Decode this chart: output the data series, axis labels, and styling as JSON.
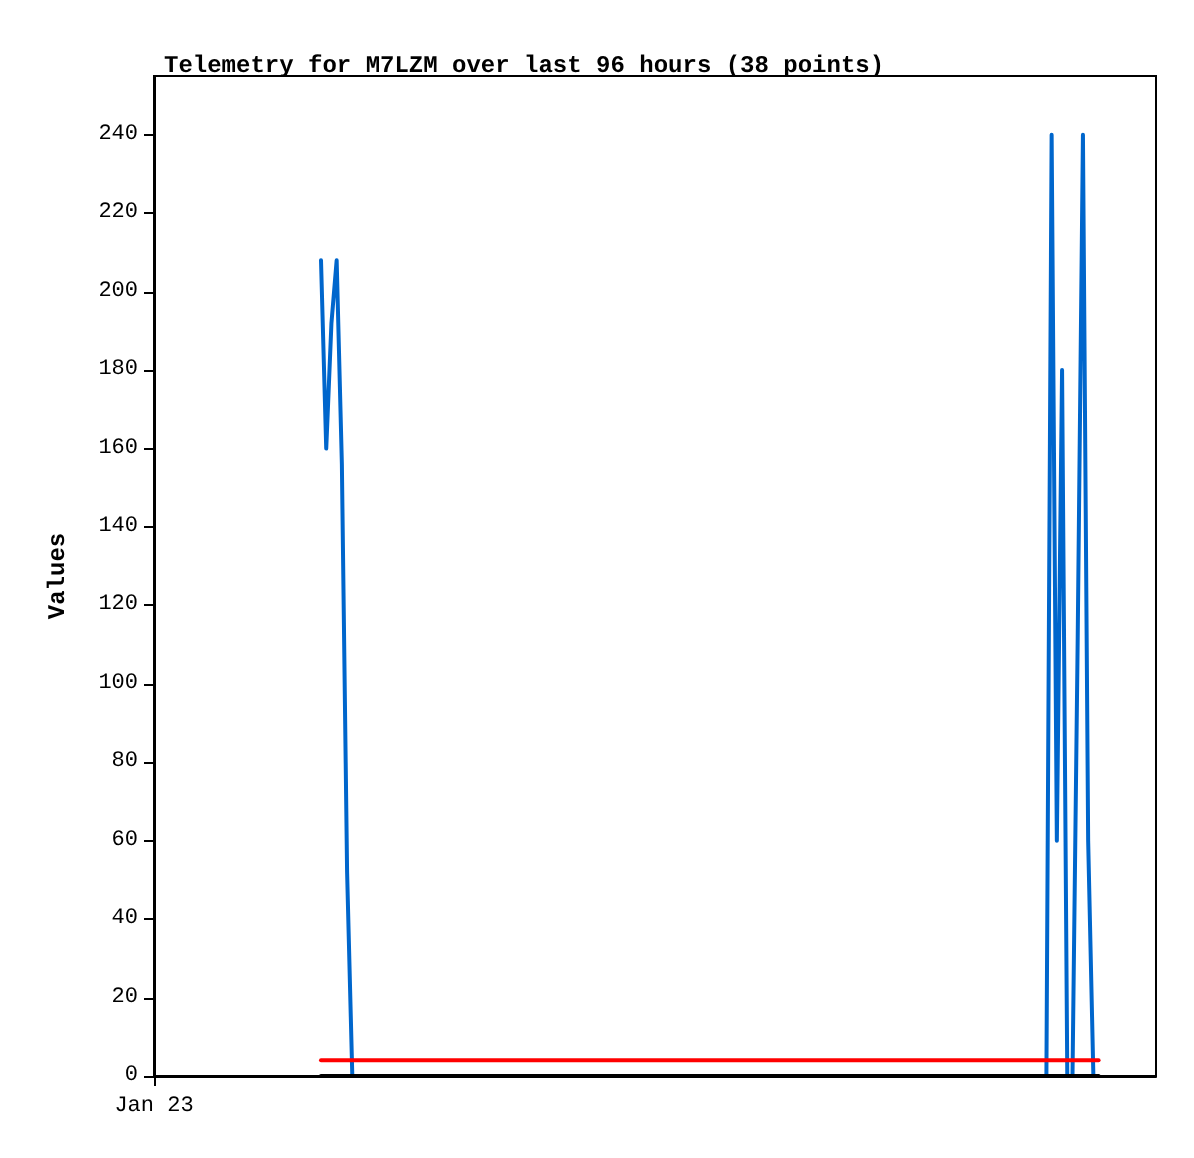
{
  "chart_data": {
    "type": "line",
    "title": "Telemetry for M7LZM over last 96 hours (38 points)",
    "ylabel": "Values",
    "categories": [
      "Jan 23",
      null,
      null,
      null,
      null,
      null,
      null,
      null,
      null,
      null,
      null,
      null,
      null,
      null,
      null,
      null,
      null,
      null,
      null,
      null,
      null,
      null,
      null,
      null,
      null,
      null,
      null,
      null,
      null,
      null,
      null,
      null,
      null,
      null,
      null,
      null,
      null,
      null,
      null,
      null,
      null,
      null,
      null,
      null,
      null,
      null,
      null,
      null,
      null,
      null,
      null,
      null,
      null,
      null,
      null,
      null,
      null,
      null,
      null,
      null,
      null,
      null,
      null,
      null,
      null,
      null,
      null,
      null,
      null,
      null,
      null,
      null,
      null,
      null,
      null,
      null,
      null,
      null,
      null,
      null,
      null,
      null,
      null,
      null,
      null,
      null,
      null,
      null,
      null,
      null,
      null,
      null,
      null,
      null,
      null,
      null,
      null,
      null,
      null,
      null,
      null,
      null,
      null,
      null,
      null,
      null,
      null,
      null,
      null,
      null,
      null,
      null,
      null,
      null,
      null,
      null,
      null,
      null,
      null,
      null,
      null,
      null,
      null,
      null,
      null,
      null,
      null,
      null,
      null,
      null,
      null,
      null,
      null,
      null,
      null,
      null,
      null,
      null,
      null,
      null,
      null,
      null,
      null,
      null,
      null,
      null,
      null,
      null,
      null,
      null,
      null,
      null,
      null,
      null,
      null,
      null,
      null,
      null,
      null,
      null,
      null,
      null,
      null,
      null,
      null,
      null,
      null,
      null,
      null,
      null,
      null,
      null,
      null,
      null,
      null,
      null,
      null,
      null,
      null,
      null,
      null,
      null,
      null,
      null,
      null,
      null,
      null,
      null,
      null,
      null,
      null,
      null,
      null
    ],
    "ylim": [
      0,
      255
    ],
    "yticks": [
      0,
      20,
      40,
      60,
      80,
      100,
      120,
      140,
      160,
      180,
      200,
      220,
      240
    ],
    "grid": false,
    "marker": "none",
    "line_style": "solid",
    "series": [
      {
        "color": "#0066cc",
        "values": [
          null,
          null,
          null,
          null,
          null,
          null,
          null,
          null,
          null,
          null,
          null,
          null,
          null,
          null,
          null,
          null,
          null,
          null,
          null,
          null,
          null,
          null,
          null,
          null,
          null,
          null,
          null,
          null,
          null,
          null,
          null,
          null,
          208,
          160,
          192,
          208,
          156,
          52,
          0,
          null,
          null,
          null,
          null,
          null,
          null,
          null,
          null,
          null,
          null,
          null,
          null,
          null,
          null,
          null,
          null,
          null,
          null,
          null,
          null,
          null,
          null,
          null,
          null,
          null,
          null,
          null,
          null,
          null,
          null,
          null,
          null,
          null,
          null,
          null,
          null,
          null,
          null,
          null,
          null,
          null,
          null,
          null,
          null,
          null,
          null,
          null,
          null,
          null,
          null,
          null,
          null,
          null,
          null,
          null,
          null,
          null,
          null,
          null,
          null,
          null,
          null,
          null,
          null,
          null,
          null,
          null,
          null,
          null,
          null,
          null,
          null,
          null,
          null,
          null,
          null,
          null,
          null,
          null,
          null,
          null,
          null,
          null,
          null,
          null,
          null,
          null,
          null,
          null,
          null,
          null,
          null,
          null,
          null,
          null,
          null,
          null,
          null,
          null,
          null,
          null,
          null,
          null,
          null,
          null,
          null,
          null,
          null,
          null,
          null,
          null,
          null,
          null,
          null,
          null,
          null,
          null,
          null,
          null,
          null,
          null,
          null,
          null,
          null,
          null,
          null,
          null,
          null,
          null,
          null,
          null,
          null,
          0,
          240,
          60,
          180,
          0,
          0,
          112,
          240,
          60,
          0,
          null,
          null,
          null,
          null,
          null,
          null,
          null,
          null,
          null,
          null,
          null,
          null
        ]
      },
      {
        "color": "#ff0000",
        "values": [
          null,
          null,
          null,
          null,
          null,
          null,
          null,
          null,
          null,
          null,
          null,
          null,
          null,
          null,
          null,
          null,
          null,
          null,
          null,
          null,
          null,
          null,
          null,
          null,
          null,
          null,
          null,
          null,
          null,
          null,
          null,
          null,
          4,
          4,
          4,
          4,
          4,
          4,
          4,
          4,
          4,
          4,
          4,
          4,
          4,
          4,
          4,
          4,
          4,
          4,
          4,
          4,
          4,
          4,
          4,
          4,
          4,
          4,
          4,
          4,
          4,
          4,
          4,
          4,
          4,
          4,
          4,
          4,
          4,
          4,
          4,
          4,
          4,
          4,
          4,
          4,
          4,
          4,
          4,
          4,
          4,
          4,
          4,
          4,
          4,
          4,
          4,
          4,
          4,
          4,
          4,
          4,
          4,
          4,
          4,
          4,
          4,
          4,
          4,
          4,
          4,
          4,
          4,
          4,
          4,
          4,
          4,
          4,
          4,
          4,
          4,
          4,
          4,
          4,
          4,
          4,
          4,
          4,
          4,
          4,
          4,
          4,
          4,
          4,
          4,
          4,
          4,
          4,
          4,
          4,
          4,
          4,
          4,
          4,
          4,
          4,
          4,
          4,
          4,
          4,
          4,
          4,
          4,
          4,
          4,
          4,
          4,
          4,
          4,
          4,
          4,
          4,
          4,
          4,
          4,
          4,
          4,
          4,
          4,
          4,
          4,
          4,
          4,
          4,
          4,
          4,
          4,
          4,
          4,
          4,
          4,
          4,
          4,
          4,
          4,
          4,
          4,
          4,
          4,
          4,
          4,
          4,
          null,
          null,
          null,
          null,
          null,
          null,
          null,
          null,
          null,
          null,
          null
        ]
      },
      {
        "color": "#000000",
        "values": [
          null,
          null,
          null,
          null,
          null,
          null,
          null,
          null,
          null,
          null,
          null,
          null,
          null,
          null,
          null,
          null,
          null,
          null,
          null,
          null,
          null,
          null,
          null,
          null,
          null,
          null,
          null,
          null,
          null,
          null,
          null,
          null,
          0,
          0,
          0,
          0,
          0,
          0,
          0,
          0,
          0,
          0,
          0,
          0,
          0,
          0,
          0,
          0,
          0,
          0,
          0,
          0,
          0,
          0,
          0,
          0,
          0,
          0,
          0,
          0,
          0,
          0,
          0,
          0,
          0,
          0,
          0,
          0,
          0,
          0,
          0,
          0,
          0,
          0,
          0,
          0,
          0,
          0,
          0,
          0,
          0,
          0,
          0,
          0,
          0,
          0,
          0,
          0,
          0,
          0,
          0,
          0,
          0,
          0,
          0,
          0,
          0,
          0,
          0,
          0,
          0,
          0,
          0,
          0,
          0,
          0,
          0,
          0,
          0,
          0,
          0,
          0,
          0,
          0,
          0,
          0,
          0,
          0,
          0,
          0,
          0,
          0,
          0,
          0,
          0,
          0,
          0,
          0,
          0,
          0,
          0,
          0,
          0,
          0,
          0,
          0,
          0,
          0,
          0,
          0,
          0,
          0,
          0,
          0,
          0,
          0,
          0,
          0,
          0,
          0,
          0,
          0,
          0,
          0,
          0,
          0,
          0,
          0,
          0,
          0,
          0,
          0,
          0,
          0,
          0,
          0,
          0,
          0,
          0,
          0,
          0,
          0,
          0,
          0,
          0,
          0,
          0,
          0,
          0,
          0,
          0,
          0,
          null,
          null,
          null,
          null,
          null,
          null,
          null,
          null,
          null,
          null,
          null
        ]
      }
    ]
  }
}
